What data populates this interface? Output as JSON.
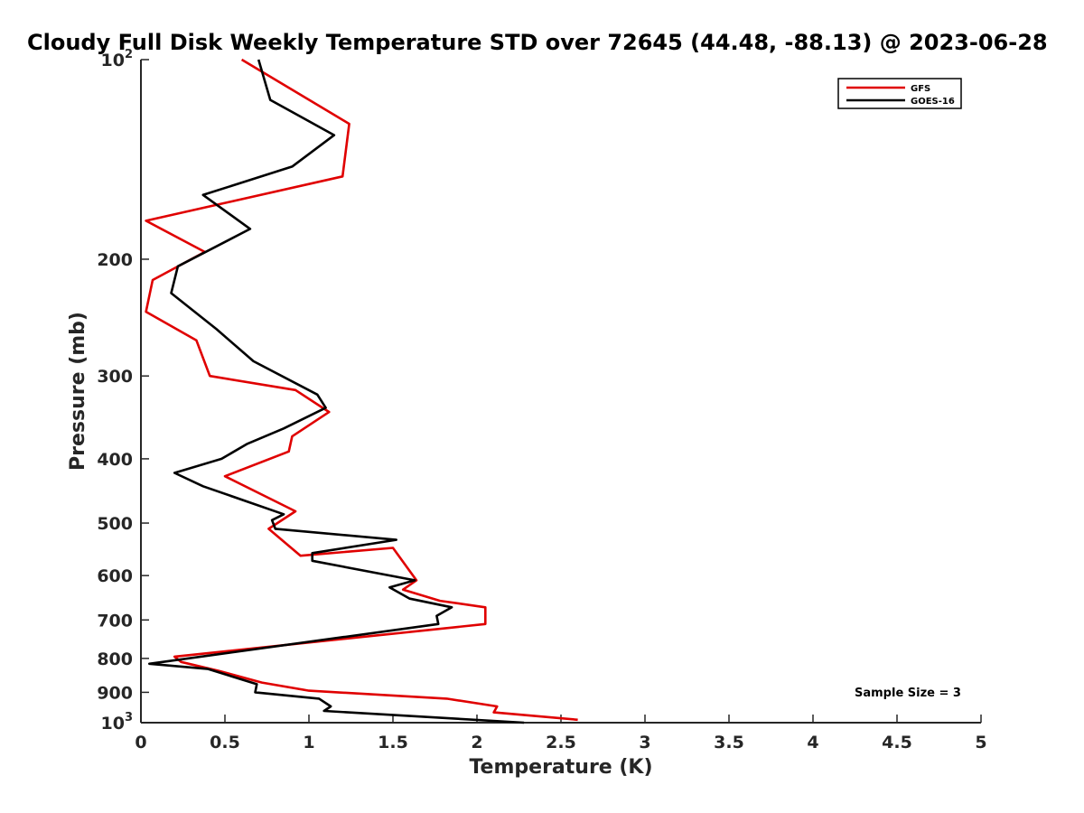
{
  "chart_data": {
    "type": "line",
    "title": "Cloudy Full Disk Weekly Temperature STD over 72645 (44.48, -88.13) @ 2023-06-28",
    "xlabel": "Temperature (K)",
    "ylabel": "Pressure (mb)",
    "xlim": [
      0,
      5
    ],
    "ylim": [
      1000,
      100
    ],
    "y_scale": "log",
    "y_reversed": true,
    "x_ticks": [
      {
        "value": 0,
        "label": "0"
      },
      {
        "value": 0.5,
        "label": "0.5"
      },
      {
        "value": 1,
        "label": "1"
      },
      {
        "value": 1.5,
        "label": "1.5"
      },
      {
        "value": 2,
        "label": "2"
      },
      {
        "value": 2.5,
        "label": "2.5"
      },
      {
        "value": 3,
        "label": "3"
      },
      {
        "value": 3.5,
        "label": "3.5"
      },
      {
        "value": 4,
        "label": "4"
      },
      {
        "value": 4.5,
        "label": "4.5"
      },
      {
        "value": 5,
        "label": "5"
      }
    ],
    "y_ticks": [
      {
        "value": 100,
        "base": "10",
        "exp": "2"
      },
      {
        "value": 200,
        "base": "200",
        "exp": ""
      },
      {
        "value": 300,
        "base": "300",
        "exp": ""
      },
      {
        "value": 400,
        "base": "400",
        "exp": ""
      },
      {
        "value": 500,
        "base": "500",
        "exp": ""
      },
      {
        "value": 600,
        "base": "600",
        "exp": ""
      },
      {
        "value": 700,
        "base": "700",
        "exp": ""
      },
      {
        "value": 800,
        "base": "800",
        "exp": ""
      },
      {
        "value": 900,
        "base": "900",
        "exp": ""
      },
      {
        "value": 1000,
        "base": "10",
        "exp": "3"
      }
    ],
    "grid": false,
    "legend_position": "top-right",
    "annotation": "Sample Size = 3",
    "series": [
      {
        "name": "GFS",
        "color": "#e00000",
        "points": [
          [
            0.6,
            100
          ],
          [
            1.24,
            125
          ],
          [
            1.2,
            150
          ],
          [
            0.03,
            175
          ],
          [
            0.38,
            195
          ],
          [
            0.07,
            215
          ],
          [
            0.03,
            240
          ],
          [
            0.33,
            265
          ],
          [
            0.41,
            300
          ],
          [
            0.92,
            315
          ],
          [
            1.12,
            340
          ],
          [
            0.9,
            370
          ],
          [
            0.88,
            390
          ],
          [
            0.5,
            425
          ],
          [
            0.92,
            480
          ],
          [
            0.76,
            510
          ],
          [
            0.95,
            560
          ],
          [
            1.5,
            545
          ],
          [
            1.64,
            610
          ],
          [
            1.56,
            630
          ],
          [
            1.78,
            655
          ],
          [
            2.05,
            670
          ],
          [
            2.05,
            710
          ],
          [
            0.2,
            795
          ],
          [
            0.24,
            810
          ],
          [
            0.46,
            835
          ],
          [
            0.72,
            870
          ],
          [
            1.0,
            895
          ],
          [
            1.82,
            920
          ],
          [
            2.12,
            945
          ],
          [
            2.1,
            965
          ],
          [
            2.6,
            990
          ]
        ]
      },
      {
        "name": "GOES-16",
        "color": "#000000",
        "points": [
          [
            0.7,
            100
          ],
          [
            0.77,
            115
          ],
          [
            1.15,
            130
          ],
          [
            0.9,
            145
          ],
          [
            0.37,
            160
          ],
          [
            0.65,
            180
          ],
          [
            0.22,
            205
          ],
          [
            0.18,
            225
          ],
          [
            0.45,
            255
          ],
          [
            0.67,
            285
          ],
          [
            1.05,
            320
          ],
          [
            1.1,
            335
          ],
          [
            0.85,
            360
          ],
          [
            0.63,
            380
          ],
          [
            0.48,
            400
          ],
          [
            0.2,
            420
          ],
          [
            0.37,
            440
          ],
          [
            0.85,
            485
          ],
          [
            0.78,
            495
          ],
          [
            0.8,
            510
          ],
          [
            1.52,
            530
          ],
          [
            1.02,
            555
          ],
          [
            1.02,
            570
          ],
          [
            1.63,
            610
          ],
          [
            1.48,
            625
          ],
          [
            1.6,
            650
          ],
          [
            1.85,
            670
          ],
          [
            1.76,
            690
          ],
          [
            1.77,
            710
          ],
          [
            0.05,
            815
          ],
          [
            0.4,
            830
          ],
          [
            0.69,
            875
          ],
          [
            0.68,
            900
          ],
          [
            1.06,
            920
          ],
          [
            1.13,
            945
          ],
          [
            1.09,
            960
          ],
          [
            2.28,
            1000
          ]
        ]
      }
    ]
  }
}
